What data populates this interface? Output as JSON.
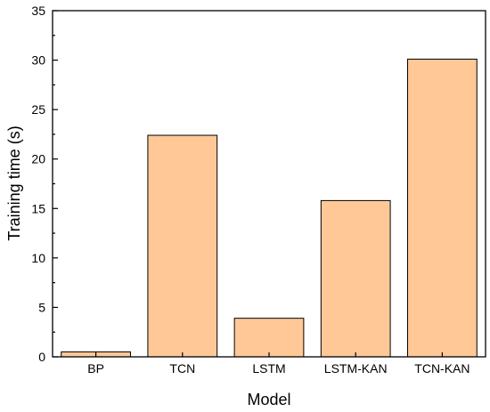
{
  "chart_data": {
    "type": "bar",
    "categories": [
      "BP",
      "TCN",
      "LSTM",
      "LSTM-KAN",
      "TCN-KAN"
    ],
    "values": [
      0.5,
      22.4,
      3.9,
      15.8,
      30.1
    ],
    "xlabel": "Model",
    "ylabel": "Training time (s)",
    "ylim": [
      0,
      35
    ],
    "yticks": [
      0,
      5,
      10,
      15,
      20,
      25,
      30,
      35
    ],
    "bar_color": "#FFC896",
    "grid": false,
    "legend": "none"
  }
}
